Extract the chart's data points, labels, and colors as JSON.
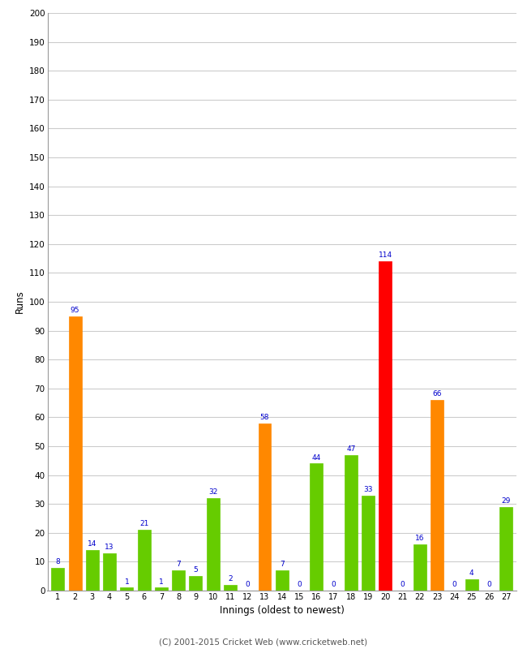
{
  "innings": [
    1,
    2,
    3,
    4,
    5,
    6,
    7,
    8,
    9,
    10,
    11,
    12,
    13,
    14,
    15,
    16,
    17,
    18,
    19,
    20,
    21,
    22,
    23,
    24,
    25,
    26,
    27
  ],
  "values": [
    8,
    95,
    14,
    13,
    1,
    21,
    1,
    7,
    5,
    32,
    2,
    0,
    58,
    7,
    0,
    44,
    0,
    47,
    33,
    114,
    0,
    16,
    66,
    0,
    4,
    0,
    29
  ],
  "colors": [
    "#66cc00",
    "#ff8800",
    "#66cc00",
    "#66cc00",
    "#66cc00",
    "#66cc00",
    "#66cc00",
    "#66cc00",
    "#66cc00",
    "#66cc00",
    "#66cc00",
    "#66cc00",
    "#ff8800",
    "#66cc00",
    "#66cc00",
    "#66cc00",
    "#66cc00",
    "#66cc00",
    "#66cc00",
    "#ff0000",
    "#66cc00",
    "#66cc00",
    "#ff8800",
    "#66cc00",
    "#66cc00",
    "#66cc00",
    "#66cc00"
  ],
  "label_color": "#0000cc",
  "xlabel": "Innings (oldest to newest)",
  "ylabel": "Runs",
  "ylim": [
    0,
    200
  ],
  "yticks": [
    0,
    10,
    20,
    30,
    40,
    50,
    60,
    70,
    80,
    90,
    100,
    110,
    120,
    130,
    140,
    150,
    160,
    170,
    180,
    190,
    200
  ],
  "footer": "(C) 2001-2015 Cricket Web (www.cricketweb.net)",
  "bg_color": "#ffffff",
  "grid_color": "#cccccc",
  "fig_width": 6.5,
  "fig_height": 8.0,
  "dpi": 100
}
